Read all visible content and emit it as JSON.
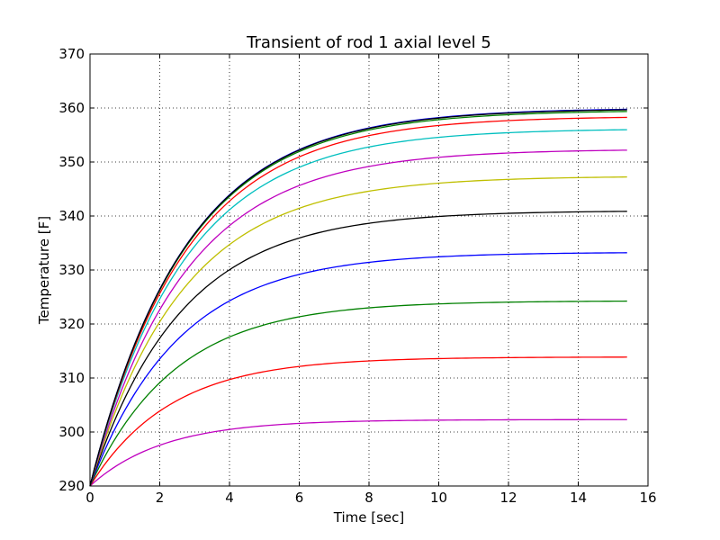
{
  "chart_data": {
    "type": "line",
    "title": "Transient of rod 1 axial level 5",
    "xlabel": "Time [sec]",
    "ylabel": "Temperature [F]",
    "xlim": [
      0,
      16
    ],
    "ylim": [
      290,
      370
    ],
    "grid": true,
    "legend": "none",
    "x_ticks": [
      "0",
      "2",
      "4",
      "6",
      "8",
      "10",
      "12",
      "14",
      "16"
    ],
    "y_ticks": [
      "290",
      "300",
      "310",
      "320",
      "330",
      "340",
      "350",
      "360",
      "370"
    ],
    "x_start": 0,
    "x_end": 15.4,
    "initial_value": 290,
    "series": [
      {
        "color": "#bf00bf",
        "final": 302.3,
        "time_constant": 2.1
      },
      {
        "color": "#ff0000",
        "final": 313.9,
        "time_constant": 2.3
      },
      {
        "color": "#008000",
        "final": 324.3,
        "time_constant": 2.45
      },
      {
        "color": "#0000ff",
        "final": 333.3,
        "time_constant": 2.55
      },
      {
        "color": "#000000",
        "final": 341.0,
        "time_constant": 2.6
      },
      {
        "color": "#bfbf00",
        "final": 347.4,
        "time_constant": 2.65
      },
      {
        "color": "#bf00bf",
        "final": 352.4,
        "time_constant": 2.7
      },
      {
        "color": "#00bfbf",
        "final": 356.2,
        "time_constant": 2.7
      },
      {
        "color": "#ff0000",
        "final": 358.5,
        "time_constant": 2.72
      },
      {
        "color": "#008000",
        "final": 359.6,
        "time_constant": 2.72
      },
      {
        "color": "#0000ff",
        "final": 360.0,
        "time_constant": 2.72
      },
      {
        "color": "#000000",
        "final": 359.9,
        "time_constant": 2.72
      }
    ]
  }
}
